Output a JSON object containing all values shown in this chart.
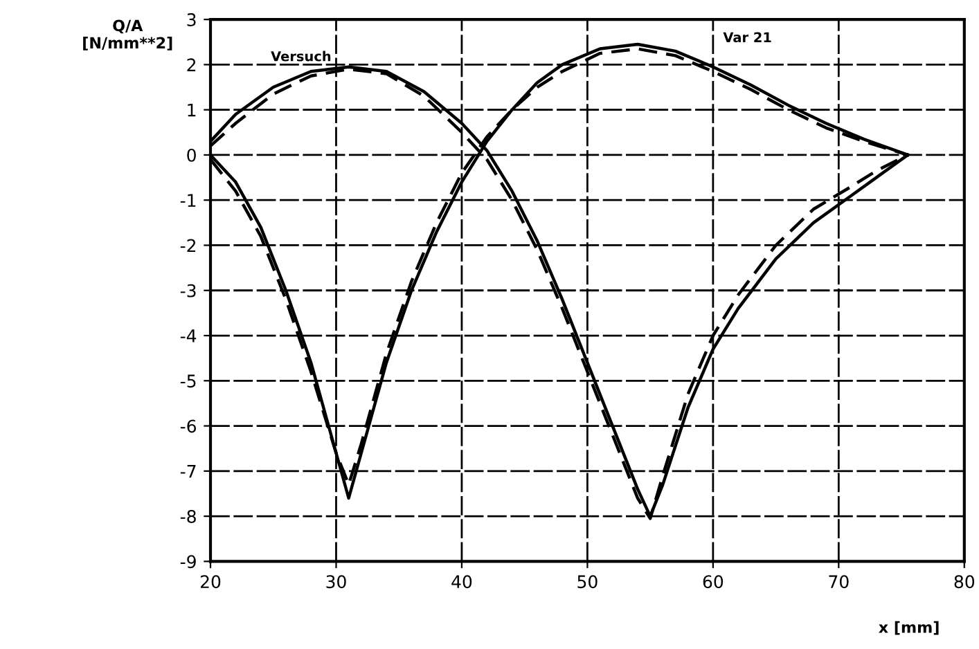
{
  "chart_data": {
    "type": "line",
    "xlabel": "x [mm]",
    "ylabel": "Q/A\n[N/mm**2]",
    "annotations": [
      "Versuch",
      "Var 21"
    ],
    "xlim": [
      20,
      80
    ],
    "xticks": [
      20,
      30,
      40,
      50,
      60,
      70,
      80
    ],
    "ylim": [
      -9,
      3
    ],
    "yticks": [
      -9,
      -8,
      -7,
      -6,
      -5,
      -4,
      -3,
      -2,
      -1,
      0,
      1,
      2,
      3
    ],
    "grid": true,
    "marker": "none",
    "series": [
      {
        "color": "#000000",
        "line_style": "solid",
        "x": [
          20,
          22,
          25,
          28,
          31,
          34,
          37,
          40,
          42,
          44,
          46,
          48,
          50,
          52,
          54,
          55,
          56,
          58,
          60,
          62,
          65,
          68,
          71,
          73,
          75.5
        ],
        "values": [
          0.3,
          0.9,
          1.5,
          1.85,
          1.95,
          1.85,
          1.4,
          0.7,
          0.1,
          -0.8,
          -1.9,
          -3.2,
          -4.6,
          -6.0,
          -7.4,
          -8.0,
          -7.3,
          -5.6,
          -4.3,
          -3.4,
          -2.3,
          -1.5,
          -0.9,
          -0.5,
          0
        ]
      },
      {
        "color": "#000000",
        "line_style": "dashed",
        "x": [
          20,
          22,
          25,
          28,
          31,
          34,
          37,
          40,
          42,
          44,
          46,
          48,
          50,
          52,
          54,
          55,
          56,
          58,
          60,
          62,
          65,
          68,
          71,
          73,
          75.5
        ],
        "values": [
          0.2,
          0.7,
          1.35,
          1.75,
          1.9,
          1.8,
          1.3,
          0.5,
          -0.1,
          -1.0,
          -2.1,
          -3.4,
          -4.8,
          -6.2,
          -7.6,
          -8.05,
          -7.1,
          -5.3,
          -4.0,
          -3.1,
          -2.0,
          -1.2,
          -0.7,
          -0.35,
          0
        ]
      },
      {
        "color": "#000000",
        "line_style": "solid",
        "x": [
          20,
          22,
          24,
          26,
          28,
          30,
          31,
          32,
          34,
          36,
          38,
          40,
          42,
          44,
          46,
          48,
          51,
          54,
          57,
          60,
          63,
          66,
          69,
          72,
          75.5
        ],
        "values": [
          0,
          -0.6,
          -1.6,
          -3.0,
          -4.6,
          -6.6,
          -7.6,
          -6.6,
          -4.6,
          -3.0,
          -1.7,
          -0.6,
          0.3,
          1.0,
          1.6,
          2.0,
          2.35,
          2.45,
          2.3,
          1.95,
          1.55,
          1.1,
          0.7,
          0.35,
          0
        ]
      },
      {
        "color": "#000000",
        "line_style": "dashed",
        "x": [
          20,
          22,
          24,
          26,
          28,
          30,
          31,
          32,
          34,
          36,
          38,
          40,
          42,
          44,
          46,
          48,
          51,
          54,
          57,
          60,
          63,
          66,
          69,
          72,
          75.5
        ],
        "values": [
          -0.1,
          -0.8,
          -1.8,
          -3.2,
          -4.8,
          -6.6,
          -7.3,
          -6.4,
          -4.4,
          -2.8,
          -1.5,
          -0.4,
          0.4,
          1.0,
          1.5,
          1.85,
          2.25,
          2.35,
          2.2,
          1.85,
          1.45,
          1.0,
          0.6,
          0.3,
          0
        ]
      }
    ]
  }
}
